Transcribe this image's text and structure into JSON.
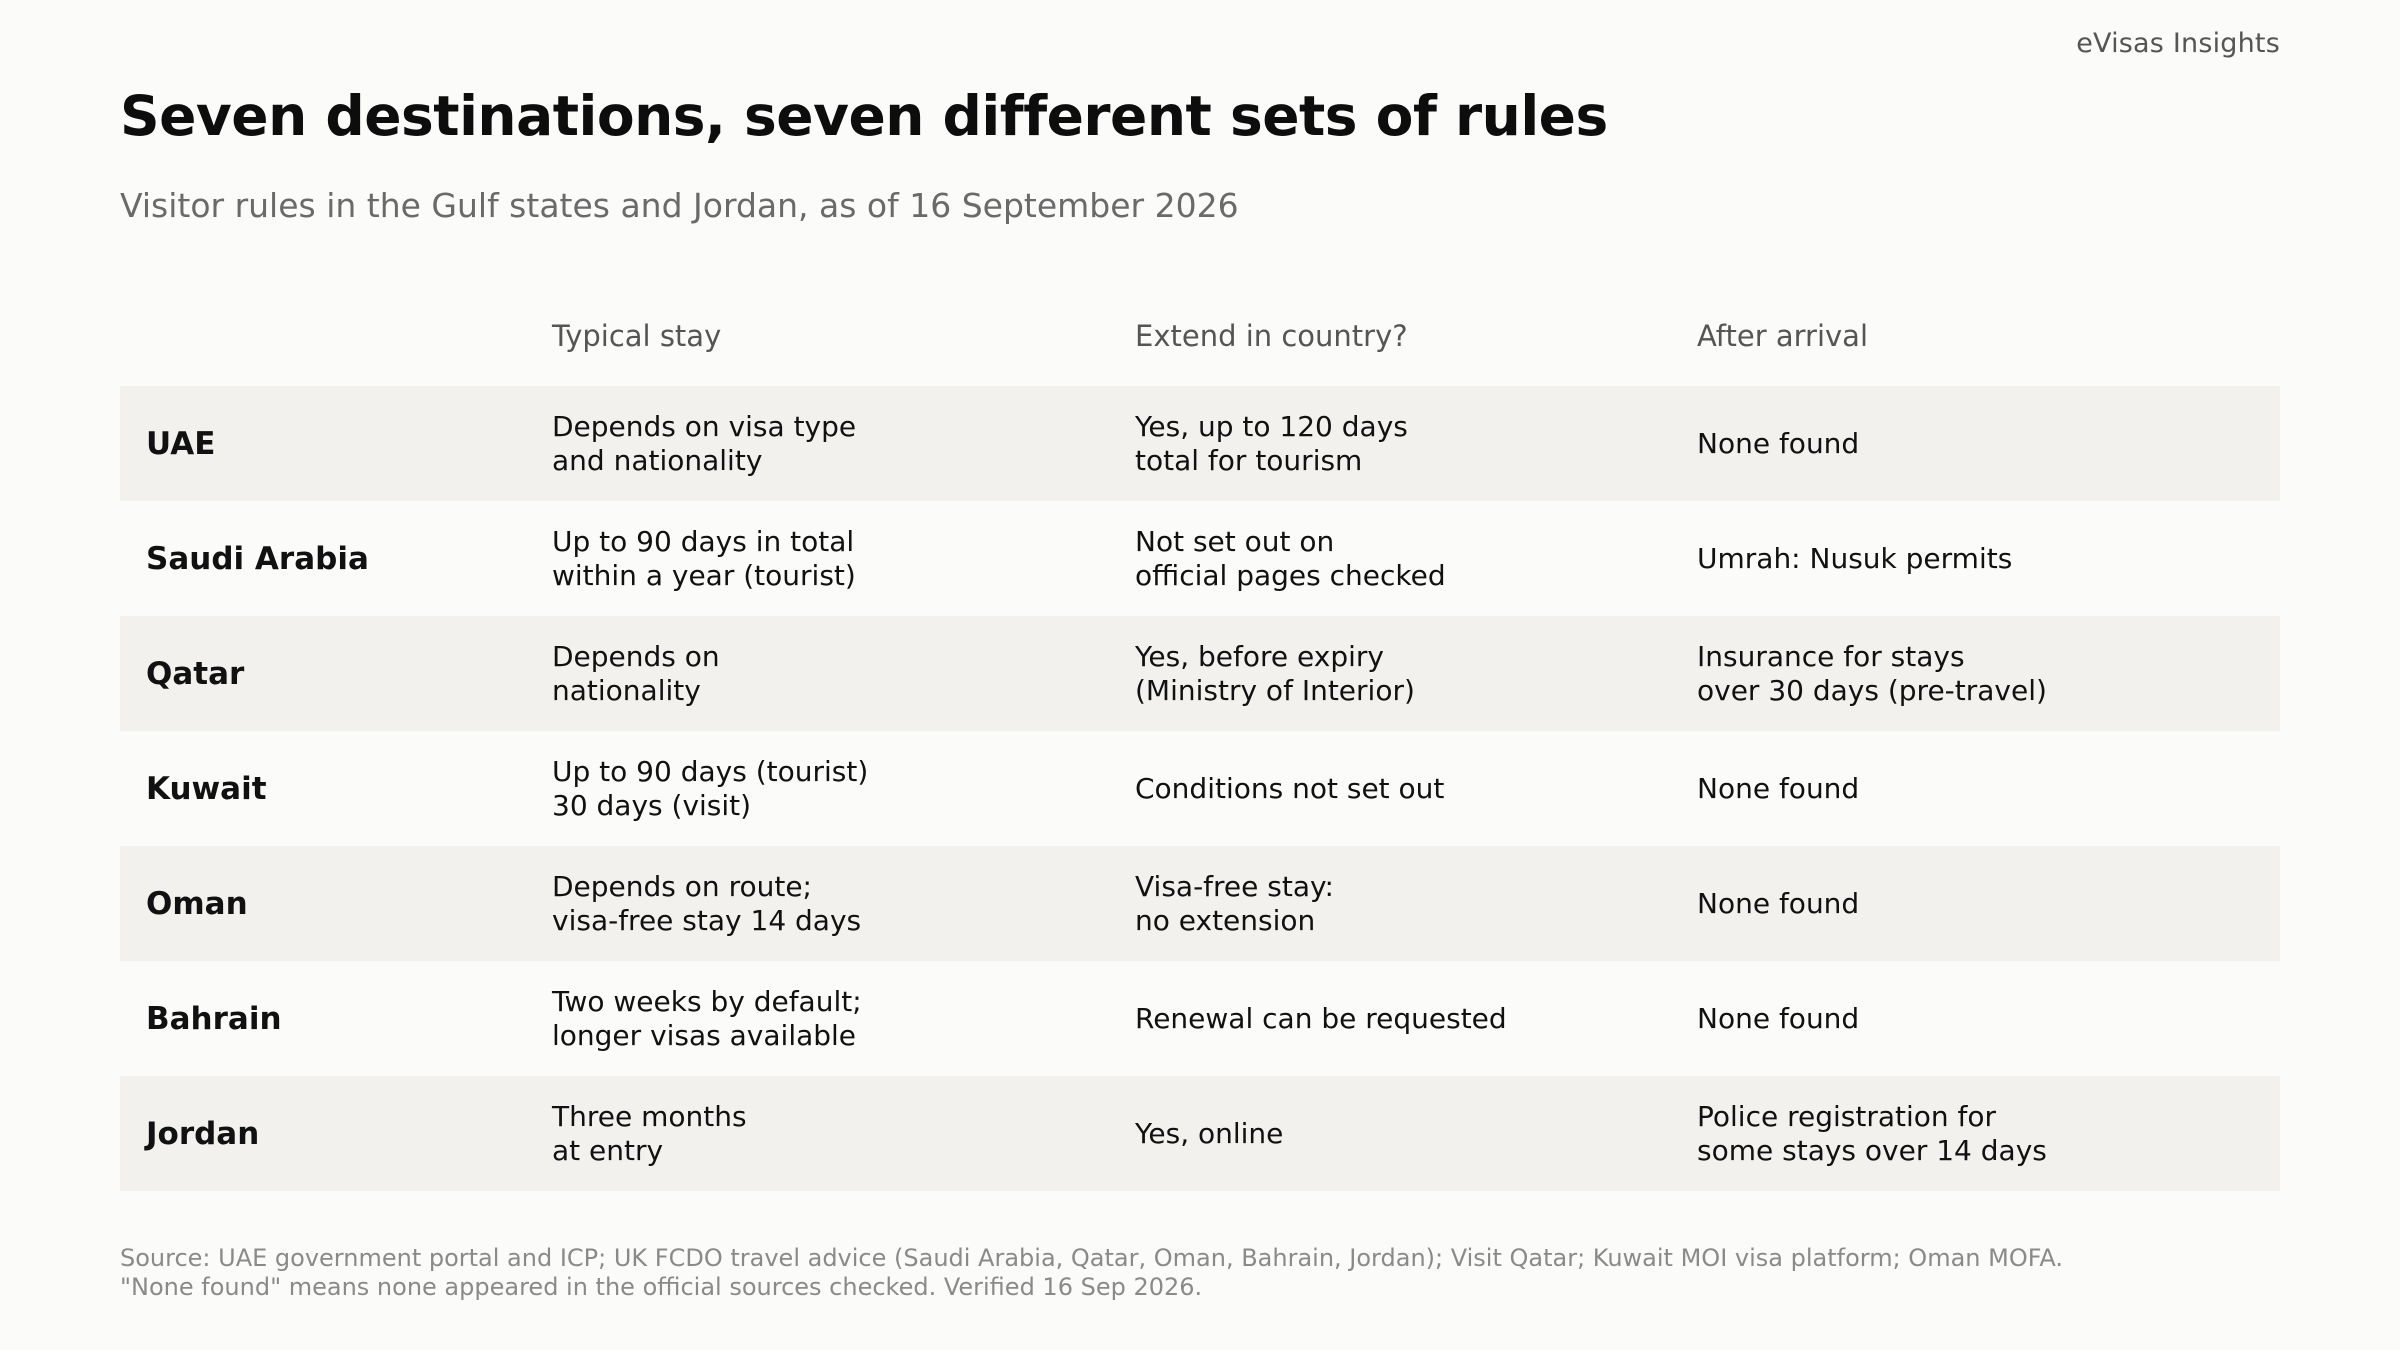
{
  "brand": "eVisas Insights",
  "title": "Seven destinations, seven different sets of rules",
  "subtitle": "Visitor rules in the Gulf states and Jordan, as of 16 September 2026",
  "table": {
    "headers": {
      "country": "",
      "stay": "Typical stay",
      "extend": "Extend in country?",
      "after": "After arrival"
    },
    "rows": [
      {
        "country": "UAE",
        "stay": "Depends on visa type\nand nationality",
        "extend": "Yes, up to 120 days\ntotal for tourism",
        "after": "None found"
      },
      {
        "country": "Saudi Arabia",
        "stay": "Up to 90 days in total\nwithin a year (tourist)",
        "extend": "Not set out on\nofficial pages checked",
        "after": "Umrah: Nusuk permits"
      },
      {
        "country": "Qatar",
        "stay": "Depends on\nnationality",
        "extend": "Yes, before expiry\n(Ministry of Interior)",
        "after": "Insurance for stays\nover 30 days (pre-travel)"
      },
      {
        "country": "Kuwait",
        "stay": "Up to 90 days (tourist)\n30 days (visit)",
        "extend": "Conditions not set out",
        "after": "None found"
      },
      {
        "country": "Oman",
        "stay": "Depends on route;\nvisa-free stay 14 days",
        "extend": "Visa-free stay:\nno extension",
        "after": "None found"
      },
      {
        "country": "Bahrain",
        "stay": "Two weeks by default;\nlonger visas available",
        "extend": "Renewal can be requested",
        "after": "None found"
      },
      {
        "country": "Jordan",
        "stay": "Three months\nat entry",
        "extend": "Yes, online",
        "after": "Police registration for\nsome stays over 14 days"
      }
    ]
  },
  "source": {
    "line1": "Source: UAE government portal and ICP; UK FCDO travel advice (Saudi Arabia, Qatar, Oman, Bahrain, Jordan); Visit Qatar; Kuwait MOI visa platform; Oman MOFA.",
    "line2": "\"None found\" means none appeared in the official sources checked. Verified 16 Sep 2026."
  },
  "colors": {
    "background": "#fbfbfa",
    "row_shade": "#f2f1ee",
    "title": "#0d0d0d",
    "muted": "#6a6a6a"
  }
}
